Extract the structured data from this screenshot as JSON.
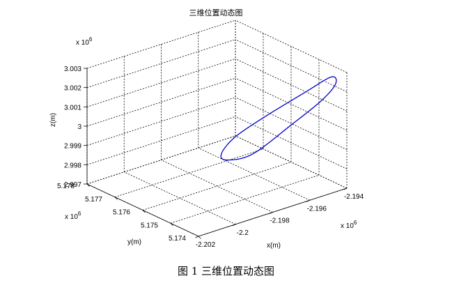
{
  "chart_data": {
    "type": "line",
    "title": "三维位置动态图",
    "xlabel": "x(m)",
    "ylabel": "y(m)",
    "zlabel": "z(m)",
    "x_exponent": "x 10",
    "x_exponent_power": "6",
    "y_exponent": "x 10",
    "y_exponent_power": "6",
    "z_exponent": "x 10",
    "z_exponent_power": "6",
    "xlim": [
      -2.202,
      -2.194
    ],
    "ylim": [
      5.174,
      5.178
    ],
    "zlim": [
      2.997,
      3.003
    ],
    "x_ticks": [
      -2.202,
      -2.2,
      -2.198,
      -2.196,
      -2.194
    ],
    "x_tick_labels": [
      "-2.202",
      "-2.2",
      "-2.198",
      "-2.196",
      "-2.194"
    ],
    "y_ticks": [
      5.174,
      5.175,
      5.176,
      5.177,
      5.178
    ],
    "y_tick_labels": [
      "5.174",
      "5.175",
      "5.176",
      "5.177",
      "5.178"
    ],
    "z_ticks": [
      2.997,
      2.998,
      2.999,
      3.0,
      3.001,
      3.002,
      3.003
    ],
    "z_tick_labels": [
      "2.997",
      "2.998",
      "2.999",
      "3",
      "3.001",
      "3.002",
      "3.003"
    ],
    "grid": true,
    "series": [
      {
        "color": "#0000cc",
        "shape": "closed-orbit",
        "x": [
          -2.1955,
          -2.1975,
          -2.1985,
          -2.1985,
          -2.1975,
          -2.1955,
          -2.1935,
          -2.1925,
          -2.1925,
          -2.1935,
          -2.1955
        ],
        "y": [
          5.1764,
          5.176,
          5.1755,
          5.175,
          5.1746,
          5.1745,
          5.1749,
          5.1754,
          5.1759,
          5.1763,
          5.1764
        ],
        "z": [
          2.9976,
          2.9982,
          2.9992,
          3.0004,
          3.0014,
          3.0021,
          3.002,
          3.001,
          2.9998,
          2.9986,
          2.9976
        ]
      }
    ]
  },
  "caption": "图 1  三维位置动态图"
}
